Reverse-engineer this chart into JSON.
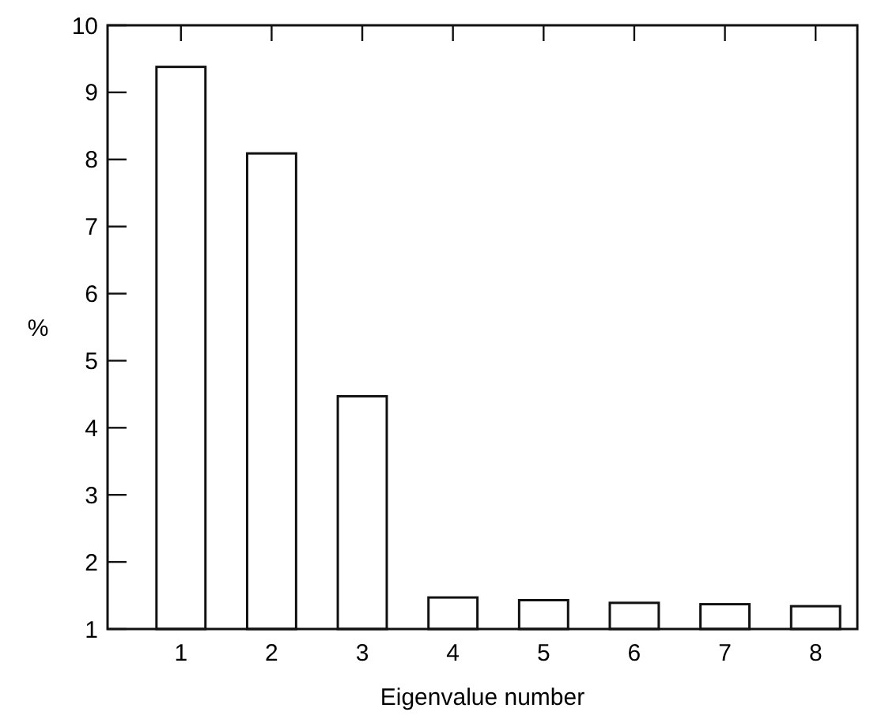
{
  "chart_data": {
    "type": "bar",
    "xlabel": "Eigenvalue number",
    "ylabel": "%",
    "categories": [
      "1",
      "2",
      "3",
      "4",
      "5",
      "6",
      "7",
      "8"
    ],
    "values": [
      9.38,
      8.09,
      4.47,
      1.47,
      1.43,
      1.39,
      1.37,
      1.34
    ],
    "color": "#ffffff",
    "ylim": [
      1,
      10
    ],
    "yticks": [
      1,
      2,
      3,
      4,
      5,
      6,
      7,
      8,
      9,
      10
    ],
    "grid": false
  }
}
